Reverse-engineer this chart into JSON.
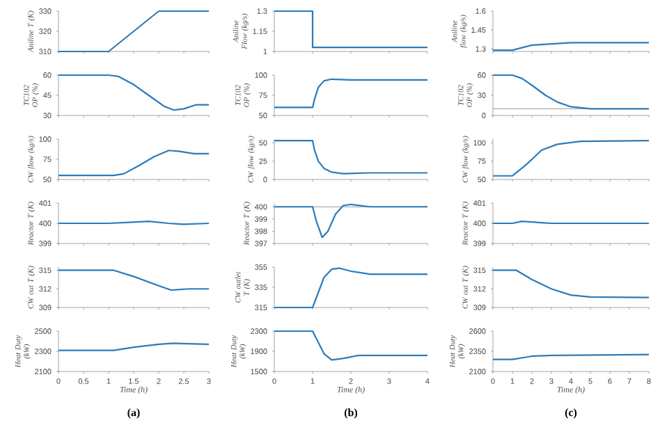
{
  "chart_data": [
    {
      "type": "line",
      "ylabel": "Aniline T (K)",
      "xlim": [
        0,
        3
      ],
      "xticks": [
        0,
        0.5,
        1,
        1.5,
        2,
        2.5,
        3
      ],
      "ylim": [
        310,
        330
      ],
      "yticks": [
        310,
        320,
        330
      ],
      "tick_labels": "y",
      "series": [
        {
          "color": "#2b7bba",
          "x": [
            0,
            1,
            2,
            3
          ],
          "values": [
            310,
            310,
            330,
            330
          ]
        }
      ]
    },
    {
      "type": "line",
      "ylabel": "TC102 OP (%)",
      "xlim": [
        0,
        3
      ],
      "xticks": [
        0,
        0.5,
        1,
        1.5,
        2,
        2.5,
        3
      ],
      "ylim": [
        30,
        60
      ],
      "yticks": [
        30,
        45,
        60
      ],
      "tick_labels": "y",
      "series": [
        {
          "color": "#2b7bba",
          "x": [
            0,
            1,
            1.2,
            1.5,
            1.8,
            2.1,
            2.3,
            2.5,
            2.75,
            3
          ],
          "values": [
            60,
            60,
            59,
            53,
            45,
            37,
            34,
            35,
            38,
            38
          ]
        }
      ]
    },
    {
      "type": "line",
      "ylabel": "CW flow (kg/s)",
      "xlim": [
        0,
        3
      ],
      "xticks": [
        0,
        0.5,
        1,
        1.5,
        2,
        2.5,
        3
      ],
      "ylim": [
        50,
        100
      ],
      "yticks": [
        50,
        75,
        100
      ],
      "tick_labels": "y",
      "series": [
        {
          "color": "#2b7bba",
          "x": [
            0,
            1.1,
            1.3,
            1.6,
            1.9,
            2.2,
            2.4,
            2.7,
            3
          ],
          "values": [
            55,
            55,
            57,
            67,
            78,
            86,
            85,
            82,
            82
          ]
        }
      ]
    },
    {
      "type": "line",
      "ylabel": "Reactor T (K)",
      "xlim": [
        0,
        3
      ],
      "xticks": [
        0,
        0.5,
        1,
        1.5,
        2,
        2.5,
        3
      ],
      "ylim": [
        399,
        401
      ],
      "yticks": [
        399,
        400,
        401
      ],
      "tick_labels": "y",
      "series": [
        {
          "color": "#2b7bba",
          "x": [
            0,
            1,
            1.4,
            1.8,
            2.2,
            2.5,
            3
          ],
          "values": [
            400,
            400,
            400.05,
            400.1,
            400,
            399.95,
            400
          ]
        }
      ]
    },
    {
      "type": "line",
      "ylabel": "CW out T (K)",
      "xlim": [
        0,
        3
      ],
      "xticks": [
        0,
        0.5,
        1,
        1.5,
        2,
        2.5,
        3
      ],
      "ylim": [
        309,
        315.5
      ],
      "yticks": [
        309,
        312,
        315
      ],
      "tick_labels": "y",
      "series": [
        {
          "color": "#2b7bba",
          "x": [
            0,
            1.1,
            1.5,
            2,
            2.25,
            2.6,
            3
          ],
          "values": [
            315,
            315,
            314,
            312.5,
            311.8,
            312,
            312
          ]
        }
      ]
    },
    {
      "type": "line",
      "ylabel": "Heat Duty (kW)",
      "xlabel": "Time (h)",
      "annotations": [
        "(a)"
      ],
      "xlim": [
        0,
        3
      ],
      "xticks": [
        0,
        0.5,
        1,
        1.5,
        2,
        2.5,
        3
      ],
      "ylim": [
        2100,
        2500
      ],
      "yticks": [
        2100,
        2300,
        2500
      ],
      "series": [
        {
          "color": "#2b7bba",
          "x": [
            0,
            1.1,
            1.5,
            2,
            2.3,
            3
          ],
          "values": [
            2310,
            2310,
            2340,
            2370,
            2380,
            2370
          ]
        }
      ]
    },
    {
      "type": "line",
      "ylabel": "Aniline Flow (kg/s)",
      "xlim": [
        0,
        4
      ],
      "xticks": [
        0,
        1,
        2,
        3,
        4
      ],
      "ylim": [
        1,
        1.3
      ],
      "yticks": [
        1,
        1.15,
        1.3
      ],
      "tick_labels": "y",
      "series": [
        {
          "color": "#2b7bba",
          "x": [
            0,
            1,
            1,
            4
          ],
          "values": [
            1.3,
            1.3,
            1.03,
            1.03
          ]
        }
      ]
    },
    {
      "type": "line",
      "ylabel": "TC102 OP (%)",
      "xlim": [
        0,
        4
      ],
      "xticks": [
        0,
        1,
        2,
        3,
        4
      ],
      "ylim": [
        50,
        100
      ],
      "yticks": [
        50,
        75,
        100
      ],
      "tick_labels": "y",
      "series": [
        {
          "color": "#2b7bba",
          "x": [
            0,
            1,
            1.05,
            1.15,
            1.3,
            1.5,
            2,
            4
          ],
          "values": [
            60,
            60,
            70,
            85,
            93,
            95,
            94,
            94
          ]
        }
      ]
    },
    {
      "type": "line",
      "ylabel": "CW flow (kg/s)",
      "xlim": [
        0,
        4
      ],
      "xticks": [
        0,
        1,
        2,
        3,
        4
      ],
      "ylim": [
        0,
        55
      ],
      "yticks": [
        0,
        25,
        50
      ],
      "tick_labels": "y",
      "series": [
        {
          "color": "#2b7bba",
          "x": [
            0,
            1,
            1.05,
            1.15,
            1.3,
            1.5,
            1.8,
            2.5,
            4
          ],
          "values": [
            53,
            53,
            40,
            25,
            15,
            10,
            8,
            9,
            9
          ]
        }
      ]
    },
    {
      "type": "line",
      "ylabel": "Reactor T (K)",
      "xlim": [
        0,
        4
      ],
      "xticks": [
        0,
        1,
        2,
        3,
        4
      ],
      "ylim": [
        397,
        400.3
      ],
      "yticks": [
        397,
        398,
        399,
        400
      ],
      "tick_labels": "y",
      "ref_lines": [
        {
          "axis": "y",
          "value": 400,
          "color": "#999999"
        }
      ],
      "series": [
        {
          "color": "#2b7bba",
          "x": [
            0,
            1,
            1.1,
            1.25,
            1.4,
            1.6,
            1.8,
            2,
            2.5,
            4
          ],
          "values": [
            400,
            400,
            398.8,
            397.5,
            398,
            399.4,
            400.1,
            400.2,
            400,
            400
          ]
        }
      ]
    },
    {
      "type": "line",
      "ylabel": "CW outlet T (K)",
      "xlim": [
        0,
        4
      ],
      "xticks": [
        0,
        1,
        2,
        3,
        4
      ],
      "ylim": [
        315,
        355
      ],
      "yticks": [
        315,
        335,
        355
      ],
      "tick_labels": "y",
      "series": [
        {
          "color": "#2b7bba",
          "x": [
            0,
            1,
            1.1,
            1.3,
            1.5,
            1.7,
            2,
            2.5,
            4
          ],
          "values": [
            315,
            315,
            325,
            345,
            353,
            354,
            351,
            348,
            348
          ]
        }
      ]
    },
    {
      "type": "line",
      "ylabel": "Heat Duty (kW)",
      "xlabel": "Time (h)",
      "annotations": [
        "(b)"
      ],
      "xlim": [
        0,
        4
      ],
      "xticks": [
        0,
        1,
        2,
        3,
        4
      ],
      "ylim": [
        1500,
        2300
      ],
      "yticks": [
        1500,
        1900,
        2300
      ],
      "series": [
        {
          "color": "#2b7bba",
          "x": [
            0,
            1,
            1.1,
            1.3,
            1.5,
            1.8,
            2.2,
            4
          ],
          "values": [
            2300,
            2300,
            2150,
            1850,
            1730,
            1760,
            1820,
            1820
          ]
        }
      ]
    },
    {
      "type": "line",
      "ylabel": "Aniline flow (kg/s)",
      "xlim": [
        0,
        8
      ],
      "xticks": [
        0,
        1,
        2,
        3,
        4,
        5,
        6,
        7,
        8
      ],
      "ylim": [
        1.28,
        1.6
      ],
      "yticks": [
        1.3,
        1.45,
        1.6
      ],
      "tick_labels": "y",
      "series": [
        {
          "color": "#2b7bba",
          "x": [
            0,
            1,
            1.5,
            2,
            3,
            4,
            8
          ],
          "values": [
            1.29,
            1.29,
            1.31,
            1.33,
            1.34,
            1.35,
            1.35
          ]
        }
      ]
    },
    {
      "type": "line",
      "ylabel": "TC102 OP (%)",
      "xlim": [
        0,
        8
      ],
      "xticks": [
        0,
        1,
        2,
        3,
        4,
        5,
        6,
        7,
        8
      ],
      "ylim": [
        0,
        60
      ],
      "yticks": [
        0,
        30,
        60
      ],
      "tick_labels": "y",
      "ref_lines": [
        {
          "axis": "y",
          "value": 10,
          "color": "#999999"
        }
      ],
      "series": [
        {
          "color": "#2b7bba",
          "x": [
            0,
            1,
            1.5,
            2,
            2.7,
            3.3,
            4,
            5,
            8
          ],
          "values": [
            60,
            60,
            55,
            45,
            30,
            20,
            13,
            10,
            10
          ]
        }
      ]
    },
    {
      "type": "line",
      "ylabel": "CW flow (kg/s)",
      "xlim": [
        0,
        8
      ],
      "xticks": [
        0,
        1,
        2,
        3,
        4,
        5,
        6,
        7,
        8
      ],
      "ylim": [
        50,
        105
      ],
      "yticks": [
        50,
        75,
        100
      ],
      "tick_labels": "y",
      "series": [
        {
          "color": "#2b7bba",
          "x": [
            0,
            1,
            1.7,
            2.5,
            3.3,
            4.5,
            8
          ],
          "values": [
            55,
            55,
            70,
            90,
            98,
            102,
            103
          ]
        }
      ]
    },
    {
      "type": "line",
      "ylabel": "Reactor T (K)",
      "xlim": [
        0,
        8
      ],
      "xticks": [
        0,
        1,
        2,
        3,
        4,
        5,
        6,
        7,
        8
      ],
      "ylim": [
        399,
        401
      ],
      "yticks": [
        399,
        400,
        401
      ],
      "tick_labels": "y",
      "series": [
        {
          "color": "#2b7bba",
          "x": [
            0,
            1,
            1.5,
            2.5,
            3,
            8
          ],
          "values": [
            400,
            400,
            400.1,
            400.03,
            400,
            400
          ]
        }
      ]
    },
    {
      "type": "line",
      "ylabel": "CW out T (K)",
      "xlim": [
        0,
        8
      ],
      "xticks": [
        0,
        1,
        2,
        3,
        4,
        5,
        6,
        7,
        8
      ],
      "ylim": [
        309,
        315.5
      ],
      "yticks": [
        309,
        312,
        315
      ],
      "tick_labels": "y",
      "series": [
        {
          "color": "#2b7bba",
          "x": [
            0,
            1.2,
            2,
            3,
            4,
            5,
            8
          ],
          "values": [
            315,
            315,
            313.5,
            312,
            311,
            310.7,
            310.6
          ]
        }
      ]
    },
    {
      "type": "line",
      "ylabel": "Heat Duty (kW)",
      "xlabel": "Time (h)",
      "annotations": [
        "(c)"
      ],
      "xlim": [
        0,
        8
      ],
      "xticks": [
        0,
        1,
        2,
        3,
        4,
        5,
        6,
        7,
        8
      ],
      "ylim": [
        2100,
        2600
      ],
      "yticks": [
        2100,
        2350,
        2600
      ],
      "series": [
        {
          "color": "#2b7bba",
          "x": [
            0,
            1,
            2,
            3,
            8
          ],
          "values": [
            2250,
            2250,
            2290,
            2300,
            2310
          ]
        }
      ]
    }
  ]
}
